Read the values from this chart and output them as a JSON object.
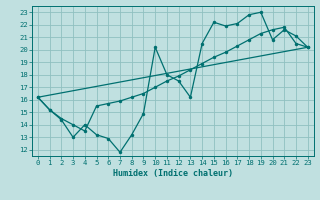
{
  "xlabel": "Humidex (Indice chaleur)",
  "bg_color": "#c0e0e0",
  "grid_color": "#90c0c0",
  "line_color": "#007070",
  "xlim": [
    -0.5,
    23.5
  ],
  "ylim": [
    11.5,
    23.5
  ],
  "xticks": [
    0,
    1,
    2,
    3,
    4,
    5,
    6,
    7,
    8,
    9,
    10,
    11,
    12,
    13,
    14,
    15,
    16,
    17,
    18,
    19,
    20,
    21,
    22,
    23
  ],
  "yticks": [
    12,
    13,
    14,
    15,
    16,
    17,
    18,
    19,
    20,
    21,
    22,
    23
  ],
  "curve1_x": [
    0,
    1,
    2,
    3,
    4,
    5,
    6,
    7,
    8,
    9,
    10,
    11,
    12,
    13,
    14,
    15,
    16,
    17,
    18,
    19,
    20,
    21,
    22,
    23
  ],
  "curve1_y": [
    16.2,
    15.2,
    14.4,
    13.0,
    14.0,
    13.2,
    12.9,
    11.8,
    13.2,
    14.9,
    20.2,
    18.0,
    17.5,
    16.2,
    20.5,
    22.2,
    21.9,
    22.1,
    22.8,
    23.0,
    20.8,
    21.6,
    21.1,
    20.2
  ],
  "curve2_x": [
    0,
    1,
    2,
    3,
    4,
    5,
    6,
    7,
    8,
    9,
    10,
    11,
    12,
    13,
    14,
    15,
    16,
    17,
    18,
    19,
    20,
    21,
    22,
    23
  ],
  "curve2_y": [
    16.2,
    15.2,
    14.5,
    14.0,
    13.5,
    15.5,
    15.7,
    15.9,
    16.2,
    16.5,
    17.0,
    17.5,
    17.9,
    18.4,
    18.9,
    19.4,
    19.8,
    20.3,
    20.8,
    21.3,
    21.6,
    21.8,
    20.5,
    20.2
  ],
  "curve3_x": [
    0,
    23
  ],
  "curve3_y": [
    16.2,
    20.2
  ],
  "lw": 0.9,
  "ms": 2.5
}
